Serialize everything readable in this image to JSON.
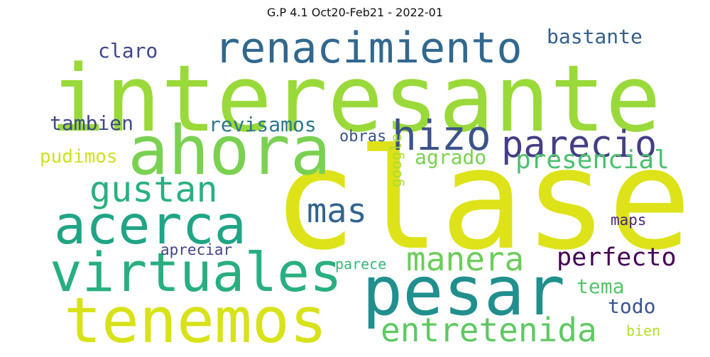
{
  "title": "G.P 4.1  Oct20-Feb21 - 2022-01",
  "words": [
    {
      "text": "clase",
      "color": "#dde318"
    },
    {
      "text": "interesante",
      "color": "#9ad93a"
    },
    {
      "text": "ahora",
      "color": "#7ad151"
    },
    {
      "text": "pesar",
      "color": "#218f8d"
    },
    {
      "text": "tenemos",
      "color": "#d8e219"
    },
    {
      "text": "virtuales",
      "color": "#29af7f"
    },
    {
      "text": "acerca",
      "color": "#20a486"
    },
    {
      "text": "renacimiento",
      "color": "#31688e"
    },
    {
      "text": "hizo",
      "color": "#3b528b"
    },
    {
      "text": "parecio",
      "color": "#433e85"
    },
    {
      "text": "gustan",
      "color": "#2ab07f"
    },
    {
      "text": "mas",
      "color": "#33638d"
    },
    {
      "text": "manera",
      "color": "#6ccd5a"
    },
    {
      "text": "entretenida",
      "color": "#5ec962"
    },
    {
      "text": "presencial",
      "color": "#4ac16d"
    },
    {
      "text": "perfecto",
      "color": "#440154"
    },
    {
      "text": "agrado",
      "color": "#7ad151"
    },
    {
      "text": "revisamos",
      "color": "#2a788e"
    },
    {
      "text": "tambien",
      "color": "#3e4a89"
    },
    {
      "text": "claro",
      "color": "#3f4788"
    },
    {
      "text": "bastante",
      "color": "#355f8d"
    },
    {
      "text": "pudimos",
      "color": "#d0e11c"
    },
    {
      "text": "obras",
      "color": "#3a548c"
    },
    {
      "text": "google",
      "color": "#addc30"
    },
    {
      "text": "tema",
      "color": "#52c569"
    },
    {
      "text": "todo",
      "color": "#39558c"
    },
    {
      "text": "maps",
      "color": "#482878"
    },
    {
      "text": "apreciar",
      "color": "#414487"
    },
    {
      "text": "parece",
      "color": "#35b779"
    },
    {
      "text": "bien",
      "color": "#b5de2b"
    }
  ]
}
